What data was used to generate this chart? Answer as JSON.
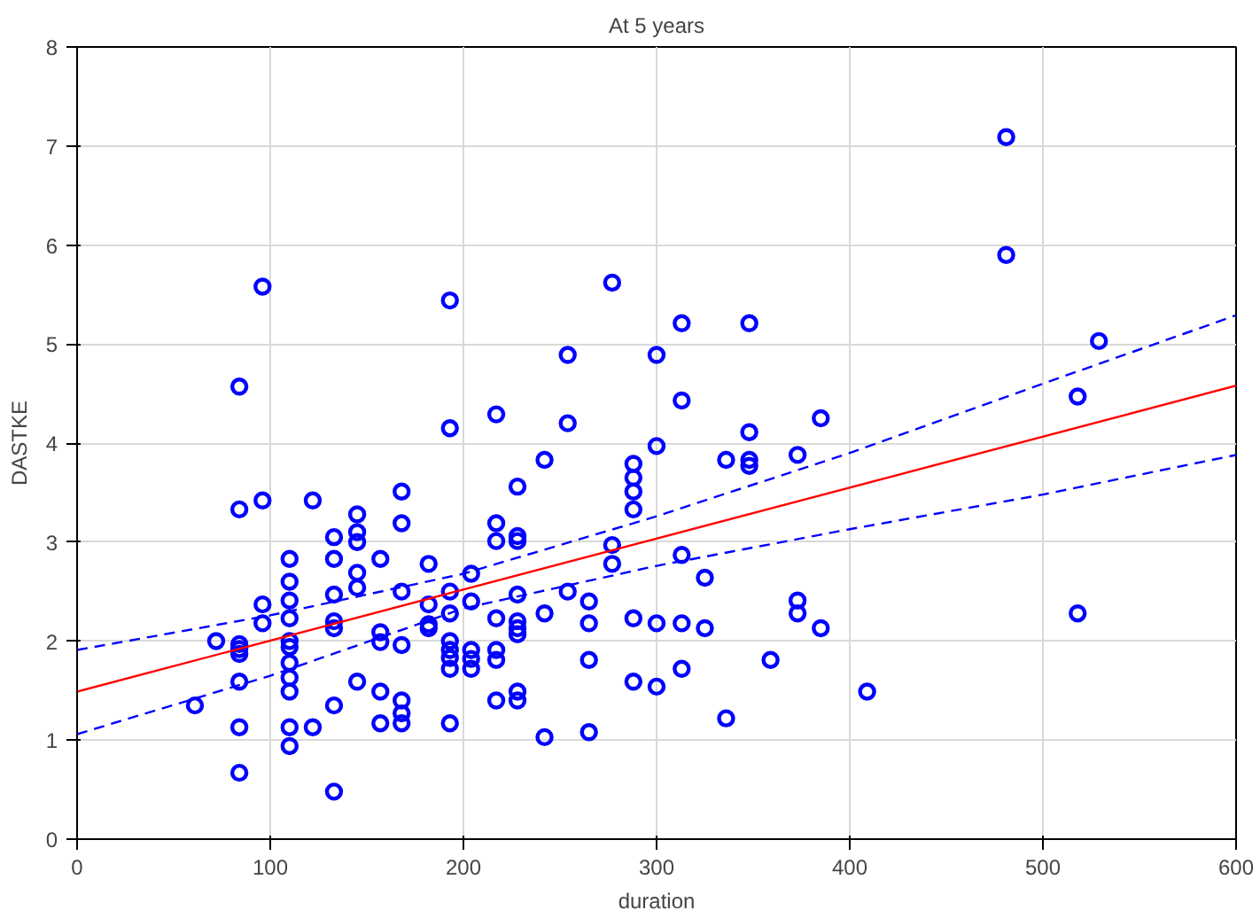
{
  "chart_data": {
    "type": "scatter",
    "title": "At 5 years",
    "xlabel": "duration",
    "ylabel": "DASTKE",
    "xlim": [
      0,
      600
    ],
    "ylim": [
      0,
      8
    ],
    "xticks": [
      0,
      100,
      200,
      300,
      400,
      500,
      600
    ],
    "yticks": [
      0,
      1,
      2,
      3,
      4,
      5,
      6,
      7,
      8
    ],
    "grid": true,
    "series": [
      {
        "marker": "circle",
        "color": "#0000ff",
        "x": [
          61,
          72,
          84,
          84,
          84,
          84,
          84,
          84,
          84,
          84,
          96,
          96,
          96,
          96,
          110,
          110,
          110,
          110,
          110,
          110,
          110,
          110,
          110,
          110,
          110,
          122,
          122,
          133,
          133,
          133,
          133,
          133,
          133,
          133,
          145,
          145,
          145,
          145,
          145,
          145,
          157,
          157,
          157,
          157,
          157,
          168,
          168,
          168,
          168,
          168,
          168,
          168,
          182,
          182,
          182,
          182,
          193,
          193,
          193,
          193,
          193,
          193,
          193,
          193,
          193,
          204,
          204,
          204,
          204,
          204,
          217,
          217,
          217,
          217,
          217,
          217,
          217,
          228,
          228,
          228,
          228,
          228,
          228,
          228,
          228,
          228,
          242,
          242,
          242,
          254,
          254,
          254,
          265,
          265,
          265,
          265,
          277,
          277,
          277,
          288,
          288,
          288,
          288,
          288,
          288,
          300,
          300,
          300,
          300,
          313,
          313,
          313,
          313,
          313,
          325,
          325,
          336,
          336,
          348,
          348,
          348,
          348,
          359,
          373,
          373,
          373,
          385,
          385,
          409,
          481,
          481,
          518,
          518,
          529
        ],
        "values": [
          1.35,
          2.0,
          4.57,
          3.33,
          1.97,
          1.92,
          1.87,
          1.59,
          1.13,
          0.67,
          5.58,
          3.42,
          2.37,
          2.18,
          2.83,
          2.6,
          2.41,
          2.23,
          2.0,
          1.94,
          1.78,
          1.63,
          1.49,
          1.13,
          0.94,
          3.42,
          1.13,
          3.05,
          2.83,
          2.47,
          2.2,
          2.13,
          1.35,
          0.48,
          3.28,
          3.1,
          3.0,
          2.69,
          2.54,
          1.59,
          2.83,
          2.09,
          1.99,
          1.49,
          1.17,
          3.51,
          3.19,
          2.5,
          1.96,
          1.4,
          1.27,
          1.17,
          2.78,
          2.37,
          2.17,
          2.13,
          5.44,
          4.15,
          2.5,
          2.28,
          2.0,
          1.91,
          1.83,
          1.72,
          1.17,
          2.68,
          2.4,
          1.91,
          1.82,
          1.72,
          4.29,
          3.19,
          3.01,
          2.23,
          1.91,
          1.81,
          1.4,
          3.56,
          3.06,
          3.01,
          2.47,
          2.2,
          2.13,
          2.07,
          1.49,
          1.4,
          3.83,
          2.28,
          1.03,
          4.89,
          4.2,
          2.5,
          2.4,
          2.18,
          1.81,
          1.08,
          5.62,
          2.97,
          2.78,
          3.79,
          3.65,
          3.51,
          3.33,
          2.23,
          1.59,
          4.89,
          3.97,
          2.18,
          1.54,
          5.21,
          4.43,
          2.87,
          2.18,
          1.72,
          2.64,
          2.13,
          3.83,
          1.22,
          5.21,
          4.11,
          3.83,
          3.77,
          1.81,
          3.88,
          2.41,
          2.28,
          4.25,
          2.13,
          1.49,
          7.09,
          5.9,
          4.47,
          2.28,
          5.03
        ]
      },
      {
        "type": "line",
        "color": "#ff0000",
        "line_style": "solid",
        "x": [
          0,
          600
        ],
        "values": [
          1.49,
          4.58
        ]
      },
      {
        "type": "line",
        "color": "#0000ff",
        "line_style": "dashed",
        "x": [
          0,
          100,
          200,
          300,
          400,
          500,
          600
        ],
        "values": [
          1.91,
          2.26,
          2.68,
          3.26,
          3.9,
          4.6,
          5.29
        ]
      },
      {
        "type": "line",
        "color": "#0000ff",
        "line_style": "dashed",
        "x": [
          0,
          100,
          200,
          300,
          400,
          500,
          600
        ],
        "values": [
          1.06,
          1.65,
          2.33,
          2.76,
          3.13,
          3.48,
          3.88
        ]
      }
    ]
  }
}
